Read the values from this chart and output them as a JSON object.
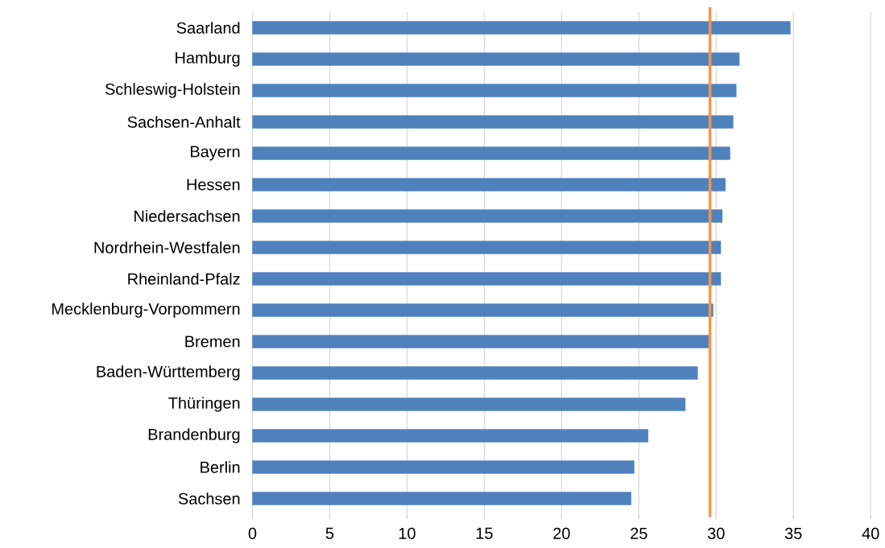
{
  "chart_data": {
    "type": "bar",
    "orientation": "horizontal",
    "categories": [
      "Saarland",
      "Hamburg",
      "Schleswig-Holstein",
      "Sachsen-Anhalt",
      "Bayern",
      "Hessen",
      "Niedersachsen",
      "Nordrhein-Westfalen",
      "Rheinland-Pfalz",
      "Mecklenburg-Vorpommern",
      "Bremen",
      "Baden-Württemberg",
      "Thüringen",
      "Brandenburg",
      "Berlin",
      "Sachsen"
    ],
    "values": [
      34.8,
      31.5,
      31.3,
      31.1,
      30.9,
      30.6,
      30.4,
      30.3,
      30.3,
      29.8,
      29.6,
      28.8,
      28.0,
      25.6,
      24.7,
      24.5
    ],
    "color": "#4f81bd",
    "xlim": [
      0,
      40
    ],
    "xticks": [
      0,
      5,
      10,
      15,
      20,
      25,
      30,
      35,
      40
    ],
    "grid": "x",
    "ref_lines": [
      {
        "axis": "x",
        "value": 29.6,
        "color": "#f79646"
      }
    ]
  }
}
